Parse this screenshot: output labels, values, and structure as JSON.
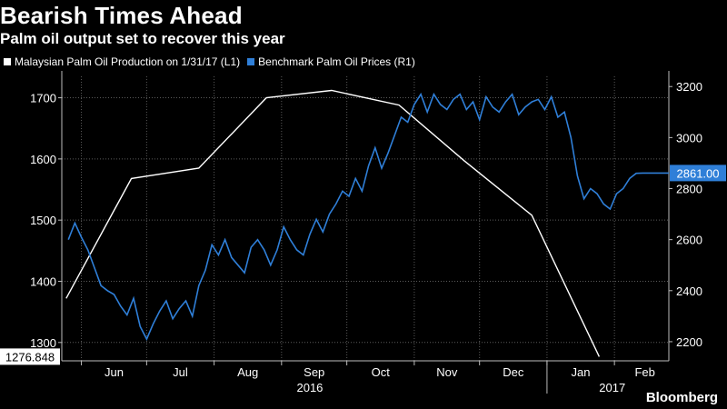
{
  "title": "Bearish Times Ahead",
  "subtitle": "Palm oil output set to recover this year",
  "brand": "Bloomberg",
  "colors": {
    "background": "#000000",
    "production": "#ffffff",
    "price": "#2f7fd8",
    "grid": "#5a5a5a"
  },
  "legend": [
    {
      "label": "Malaysian Palm Oil Production on 1/31/17 (L1)",
      "color": "#ffffff"
    },
    {
      "label": "Benchmark Palm Oil Prices (R1)",
      "color": "#2f7fd8"
    }
  ],
  "chart_data": {
    "type": "line",
    "x_axis": {
      "months": [
        "Jun",
        "Jul",
        "Aug",
        "Sep",
        "Oct",
        "Nov",
        "Dec",
        "Jan",
        "Feb"
      ],
      "years": [
        "2016",
        "2017"
      ]
    },
    "left_axis": {
      "ticks": [
        1300,
        1400,
        1500,
        1600,
        1700
      ],
      "range": [
        1270,
        1735
      ]
    },
    "right_axis": {
      "ticks": [
        2200,
        2400,
        2600,
        2800,
        3000,
        3200
      ],
      "range": [
        2125,
        3240
      ]
    },
    "last_value_labels": {
      "production": "1276.848",
      "price": "2861.00"
    },
    "series": [
      {
        "name": "Malaysian Palm Oil Production on 1/31/17",
        "axis": "left",
        "x_day": [
          -7,
          23,
          54,
          85,
          115,
          146,
          176,
          207,
          238
        ],
        "values": [
          1372,
          1568,
          1585,
          1700,
          1712,
          1688,
          1597,
          1508,
          1276.848
        ]
      },
      {
        "name": "Benchmark Palm Oil Prices",
        "axis": "right",
        "x_day": [
          -6,
          -3,
          0,
          3,
          6,
          9,
          12,
          15,
          18,
          21,
          24,
          27,
          30,
          33,
          36,
          39,
          42,
          45,
          48,
          51,
          54,
          57,
          60,
          63,
          66,
          69,
          72,
          75,
          78,
          81,
          84,
          87,
          90,
          93,
          96,
          99,
          102,
          105,
          108,
          111,
          114,
          117,
          120,
          123,
          126,
          129,
          132,
          135,
          138,
          141,
          144,
          147,
          150,
          153,
          156,
          159,
          162,
          165,
          168,
          171,
          174,
          177,
          180,
          183,
          186,
          189,
          192,
          195,
          198,
          201,
          204,
          207,
          210,
          213,
          216,
          219,
          222,
          225,
          228,
          231,
          234,
          237,
          240,
          243,
          246,
          249,
          252,
          255,
          258,
          261,
          264,
          267,
          270
        ],
        "values": [
          2600,
          2665,
          2610,
          2560,
          2490,
          2420,
          2400,
          2385,
          2340,
          2305,
          2370,
          2260,
          2210,
          2270,
          2320,
          2360,
          2290,
          2330,
          2360,
          2300,
          2420,
          2480,
          2580,
          2540,
          2600,
          2530,
          2500,
          2470,
          2570,
          2600,
          2560,
          2500,
          2560,
          2650,
          2600,
          2560,
          2540,
          2620,
          2680,
          2630,
          2700,
          2740,
          2790,
          2770,
          2840,
          2790,
          2890,
          2960,
          2880,
          2940,
          3010,
          3080,
          3060,
          3130,
          3170,
          3100,
          3170,
          3130,
          3110,
          3150,
          3170,
          3110,
          3140,
          3070,
          3160,
          3120,
          3100,
          3140,
          3170,
          3090,
          3120,
          3140,
          3150,
          3110,
          3160,
          3080,
          3100,
          3000,
          2850,
          2760,
          2800,
          2780,
          2740,
          2720,
          2780,
          2800,
          2840,
          2860,
          2861,
          2861,
          2861,
          2861,
          2861
        ]
      }
    ]
  }
}
